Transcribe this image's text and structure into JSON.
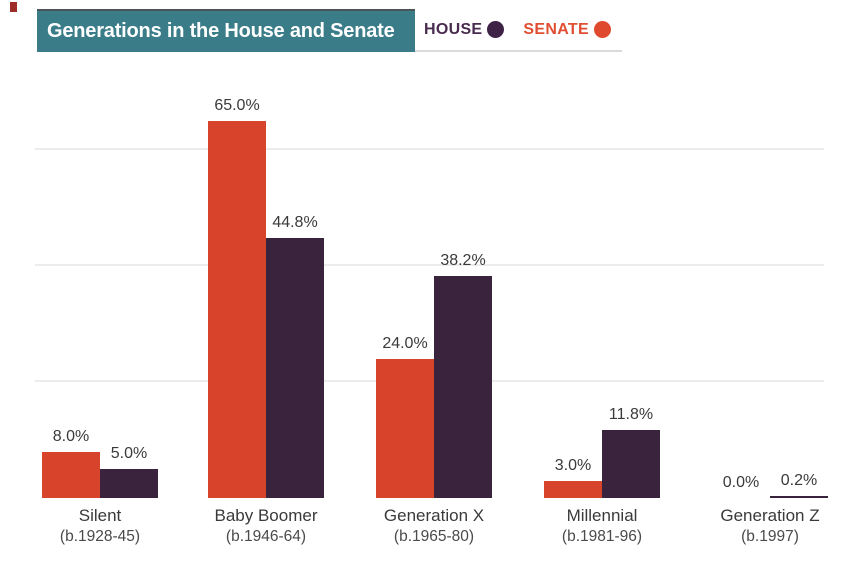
{
  "header": {
    "title": "Generations in the House and Senate",
    "bg_color": "#3a7d89"
  },
  "legend": {
    "items": [
      {
        "label": "HOUSE",
        "color": "#3f2347",
        "text_color": "#4a2b50"
      },
      {
        "label": "SENATE",
        "color": "#df4a2e",
        "text_color": "#e14f33"
      }
    ]
  },
  "chart_data": {
    "type": "bar",
    "title": "Generations in the House and Senate",
    "categories": [
      "Silent",
      "Baby Boomer",
      "Generation X",
      "Millennial",
      "Generation Z"
    ],
    "category_sublabels": [
      "(b.1928-45)",
      "(b.1946-64)",
      "(b.1965-80)",
      "(b.1981-96)",
      "(b.1997)"
    ],
    "series": [
      {
        "name": "SENATE",
        "color": "#d8432b",
        "values": [
          8.0,
          65.0,
          24.0,
          3.0,
          0.0
        ]
      },
      {
        "name": "HOUSE",
        "color": "#3a233d",
        "values": [
          5.0,
          44.8,
          38.2,
          11.8,
          0.2
        ]
      }
    ],
    "bar_order_left_to_right": [
      "SENATE",
      "HOUSE"
    ],
    "value_label_format": "0.0%",
    "ylabel": "",
    "xlabel": "",
    "ylim": [
      0,
      72
    ],
    "gridlines_pct": [
      20,
      40,
      60
    ],
    "grid": true,
    "legend_position": "top-right"
  }
}
